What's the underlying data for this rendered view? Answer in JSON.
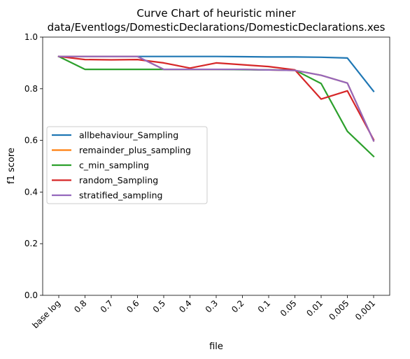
{
  "chart_data": {
    "type": "line",
    "title": "Curve Chart of heuristic miner",
    "subtitle": "data/Eventlogs/DomesticDeclarations/DomesticDeclarations.xes",
    "xlabel": "file",
    "ylabel": "f1 score",
    "ylim": [
      0,
      1.0
    ],
    "yticks": [
      "0.0",
      "0.2",
      "0.4",
      "0.6",
      "0.8",
      "1.0"
    ],
    "categories": [
      "base log",
      "0.8",
      "0.7",
      "0.6",
      "0.5",
      "0.4",
      "0.3",
      "0.2",
      "0.1",
      "0.05",
      "0.01",
      "0.005",
      "0.001"
    ],
    "grid": false,
    "legend_position": "center-left",
    "series": [
      {
        "name": "allbehaviour_Sampling",
        "color": "#1f77b4",
        "values": [
          0.925,
          0.925,
          0.925,
          0.925,
          0.925,
          0.925,
          0.925,
          0.924,
          0.923,
          0.923,
          0.922,
          0.919,
          0.79
        ]
      },
      {
        "name": "remainder_plus_sampling",
        "color": "#ff7f0e",
        "values": [
          0.925,
          0.925,
          0.925,
          0.925,
          0.875,
          0.875,
          0.875,
          0.875,
          0.873,
          0.871,
          0.852,
          0.822,
          0.598
        ]
      },
      {
        "name": "c_min_sampling",
        "color": "#2ca02c",
        "values": [
          0.925,
          0.875,
          0.875,
          0.875,
          0.875,
          0.875,
          0.875,
          0.874,
          0.873,
          0.872,
          0.82,
          0.635,
          0.538
        ]
      },
      {
        "name": "random_Sampling",
        "color": "#d62728",
        "values": [
          0.925,
          0.913,
          0.912,
          0.913,
          0.9,
          0.88,
          0.9,
          0.893,
          0.886,
          0.873,
          0.76,
          0.792,
          0.603
        ]
      },
      {
        "name": "stratified_sampling",
        "color": "#9467bd",
        "values": [
          0.925,
          0.925,
          0.925,
          0.925,
          0.875,
          0.875,
          0.875,
          0.875,
          0.873,
          0.871,
          0.852,
          0.822,
          0.598
        ]
      }
    ]
  }
}
